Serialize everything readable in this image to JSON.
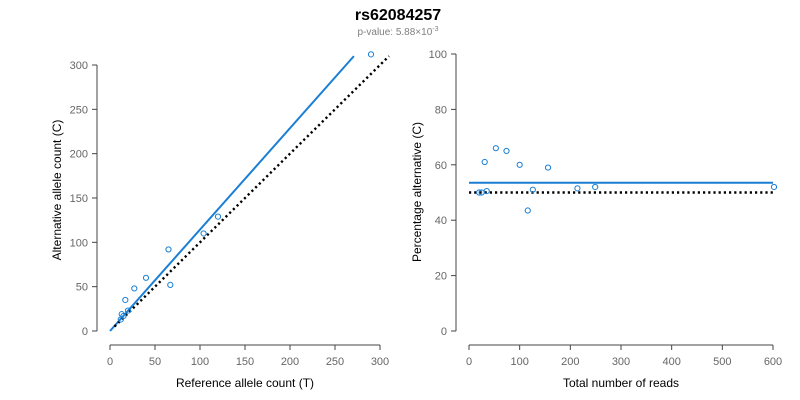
{
  "title": "rs62084257",
  "subtitle": {
    "prefix": "p-value: 5.88×10",
    "exponent": "-3"
  },
  "colors": {
    "point": "#1a7fd4",
    "fit": "#1a7fd4",
    "reference": "#000000",
    "axis": "#444444",
    "tick": "#666666"
  },
  "chart_data": [
    {
      "type": "scatter",
      "xlabel": "Reference allele count (T)",
      "ylabel": "Alternative allele count (C)",
      "xlim": [
        0,
        300
      ],
      "ylim": [
        0,
        300
      ],
      "xticks": [
        0,
        50,
        100,
        150,
        200,
        250,
        300
      ],
      "yticks": [
        0,
        50,
        100,
        150,
        200,
        250,
        300
      ],
      "points": [
        {
          "x": 12,
          "y": 13
        },
        {
          "x": 13,
          "y": 19
        },
        {
          "x": 15,
          "y": 17
        },
        {
          "x": 17,
          "y": 35
        },
        {
          "x": 20,
          "y": 23
        },
        {
          "x": 27,
          "y": 48
        },
        {
          "x": 40,
          "y": 60
        },
        {
          "x": 65,
          "y": 92
        },
        {
          "x": 67,
          "y": 52
        },
        {
          "x": 104,
          "y": 110
        },
        {
          "x": 120,
          "y": 129
        },
        {
          "x": 290,
          "y": 312
        }
      ],
      "lines": [
        {
          "kind": "fit",
          "style": "solid",
          "x1": 0,
          "y1": 0,
          "x2": 271,
          "y2": 310
        },
        {
          "kind": "reference",
          "style": "dotted",
          "x1": 5,
          "y1": 5,
          "x2": 310,
          "y2": 310
        }
      ]
    },
    {
      "type": "scatter",
      "xlabel": "Total number of reads",
      "ylabel": "Percentage alternative (C)",
      "xlim": [
        0,
        600
      ],
      "ylim": [
        0,
        100
      ],
      "xticks": [
        0,
        100,
        200,
        300,
        400,
        500,
        600
      ],
      "yticks": [
        0,
        20,
        40,
        60,
        80,
        100
      ],
      "points": [
        {
          "x": 20,
          "y": 50
        },
        {
          "x": 25,
          "y": 50
        },
        {
          "x": 31,
          "y": 61
        },
        {
          "x": 35,
          "y": 50.5
        },
        {
          "x": 53,
          "y": 66
        },
        {
          "x": 74,
          "y": 65
        },
        {
          "x": 100,
          "y": 60
        },
        {
          "x": 116,
          "y": 43.5
        },
        {
          "x": 126,
          "y": 51
        },
        {
          "x": 156,
          "y": 59
        },
        {
          "x": 214,
          "y": 51.5
        },
        {
          "x": 249,
          "y": 52
        },
        {
          "x": 602,
          "y": 52
        }
      ],
      "lines": [
        {
          "kind": "fit",
          "style": "solid",
          "x1": 0,
          "y1": 53.5,
          "x2": 600,
          "y2": 53.5
        },
        {
          "kind": "reference",
          "style": "dotted",
          "x1": 0,
          "y1": 50,
          "x2": 600,
          "y2": 50
        }
      ]
    }
  ]
}
